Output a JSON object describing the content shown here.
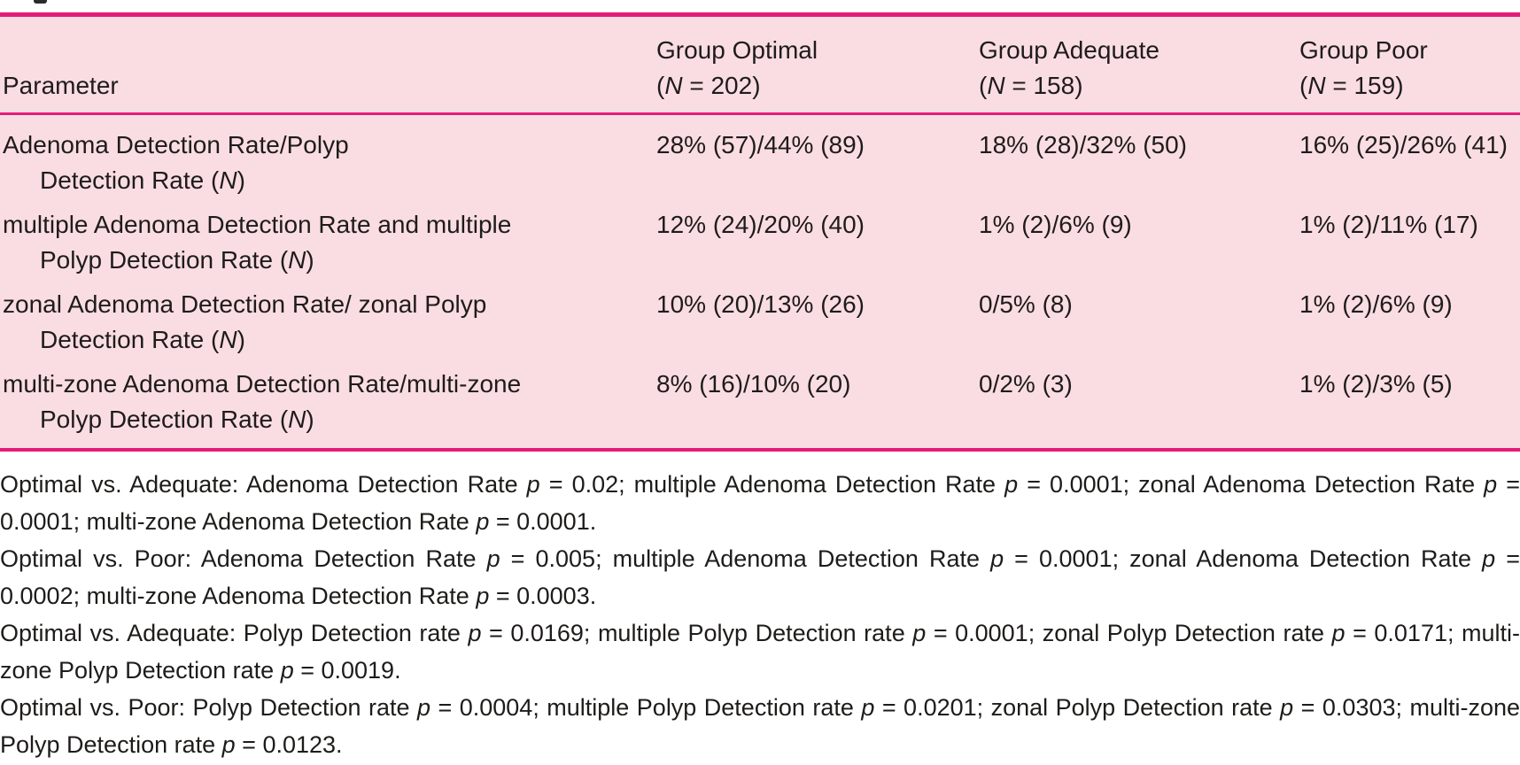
{
  "colors": {
    "tableBg": "#fadde3",
    "rule": "#e31c79",
    "text": "#1e1c1a"
  },
  "table": {
    "header": {
      "parameter": "Parameter",
      "groups": [
        {
          "name": "Group Optimal",
          "n": "(N = 202)"
        },
        {
          "name": "Group Adequate",
          "n": "(N = 158)"
        },
        {
          "name": "Group Poor",
          "n": "(N = 159)"
        }
      ]
    },
    "rows": [
      {
        "param1": "Adenoma Detection Rate/Polyp",
        "param2": "Detection Rate (N)",
        "values": [
          "28% (57)/44% (89)",
          "18% (28)/32% (50)",
          "16% (25)/26% (41)"
        ]
      },
      {
        "param1": "multiple Adenoma Detection Rate and multiple",
        "param2": "Polyp Detection Rate (N)",
        "values": [
          "12% (24)/20% (40)",
          "1% (2)/6% (9)",
          "1% (2)/11% (17)"
        ]
      },
      {
        "param1": "zonal Adenoma Detection Rate/ zonal Polyp",
        "param2": "Detection Rate (N)",
        "values": [
          "10% (20)/13% (26)",
          "0/5% (8)",
          "1% (2)/6% (9)"
        ]
      },
      {
        "param1": "multi-zone Adenoma Detection Rate/multi-zone",
        "param2": "Polyp Detection Rate (N)",
        "values": [
          "8% (16)/10% (20)",
          "0/2% (3)",
          "1% (2)/3% (5)"
        ]
      }
    ]
  },
  "footnotes": [
    "Optimal vs. Adequate: Adenoma Detection Rate p = 0.02; multiple Adenoma Detection Rate p = 0.0001; zonal Adenoma Detection Rate p = 0.0001; multi-zone Adenoma Detection Rate p = 0.0001.",
    "Optimal vs. Poor: Adenoma Detection Rate p = 0.005; multiple Adenoma Detection Rate p = 0.0001; zonal Adenoma Detection Rate p = 0.0002; multi-zone Adenoma Detection Rate p = 0.0003.",
    "Optimal vs. Adequate: Polyp Detection rate p = 0.0169; multiple Polyp Detection rate p = 0.0001; zonal Polyp Detection rate p = 0.0171; multi-zone Polyp Detection rate p = 0.0019.",
    "Optimal vs. Poor: Polyp Detection rate p = 0.0004; multiple Polyp Detection rate p = 0.0201; zonal Polyp Detection rate p = 0.0303; multi-zone Polyp Detection rate p = 0.0123."
  ]
}
